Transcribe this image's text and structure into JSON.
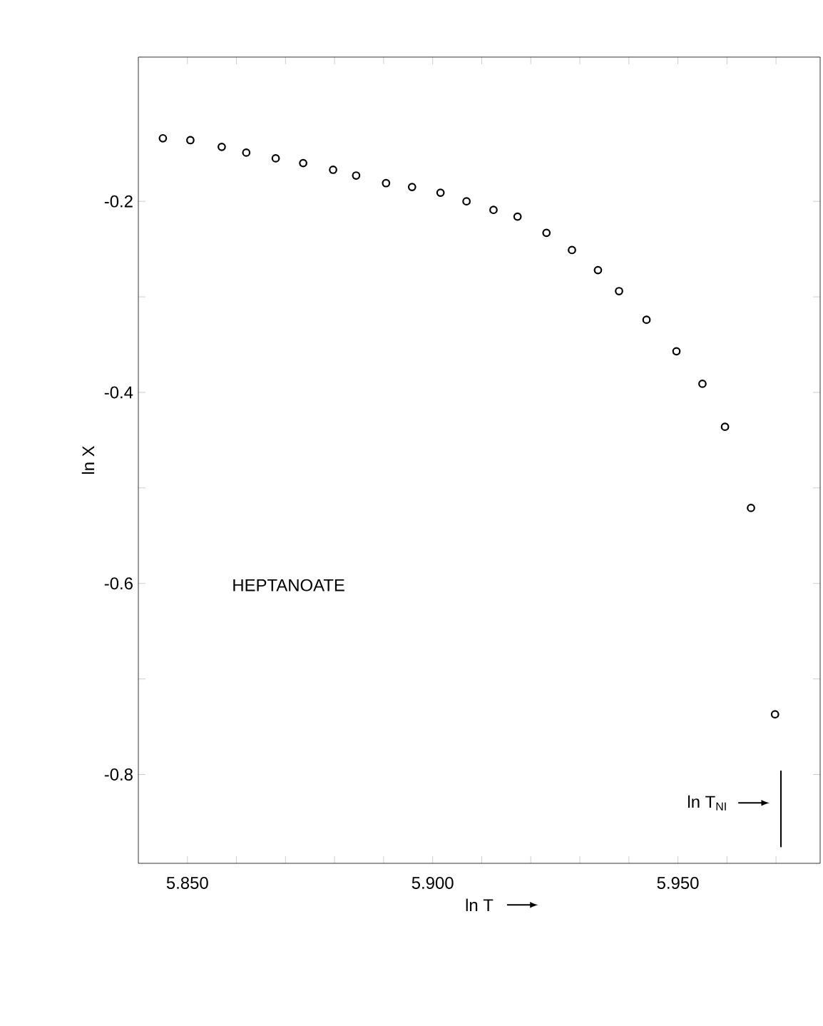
{
  "chart_data": {
    "type": "scatter",
    "xlabel": "ln T",
    "ylabel": "ln X",
    "annotations": [
      "HEPTANOATE"
    ],
    "series": [
      {
        "color": "#000000",
        "x": [
          5.845,
          5.8506,
          5.857,
          5.862,
          5.868,
          5.8736,
          5.8797,
          5.8844,
          5.8905,
          5.8958,
          5.9016,
          5.9069,
          5.9124,
          5.9173,
          5.9232,
          5.9284,
          5.9337,
          5.938,
          5.9436,
          5.9497,
          5.955,
          5.9596,
          5.9649,
          5.9698
        ],
        "values": [
          -0.134,
          -0.136,
          -0.143,
          -0.149,
          -0.155,
          -0.16,
          -0.167,
          -0.173,
          -0.181,
          -0.185,
          -0.191,
          -0.2,
          -0.209,
          -0.216,
          -0.233,
          -0.251,
          -0.272,
          -0.294,
          -0.324,
          -0.357,
          -0.391,
          -0.436,
          -0.521,
          -0.737
        ]
      }
    ],
    "marker": "circle",
    "xlim": [
      5.84,
      5.979
    ],
    "ylim": [
      -0.893,
      -0.049
    ],
    "xticks": [
      {
        "value": 5.85,
        "label": "5.850"
      },
      {
        "value": 5.86,
        "label": null
      },
      {
        "value": 5.87,
        "label": null
      },
      {
        "value": 5.88,
        "label": null
      },
      {
        "value": 5.89,
        "label": null
      },
      {
        "value": 5.9,
        "label": "5.900"
      },
      {
        "value": 5.91,
        "label": null
      },
      {
        "value": 5.92,
        "label": null
      },
      {
        "value": 5.93,
        "label": null
      },
      {
        "value": 5.94,
        "label": null
      },
      {
        "value": 5.95,
        "label": "5.950"
      },
      {
        "value": 5.96,
        "label": null
      },
      {
        "value": 5.97,
        "label": null
      }
    ],
    "yticks": [
      {
        "value": -0.2,
        "label": "-0.2"
      },
      {
        "value": -0.3,
        "label": null
      },
      {
        "value": -0.4,
        "label": "-0.4"
      },
      {
        "value": -0.5,
        "label": null
      },
      {
        "value": -0.6,
        "label": "-0.6"
      },
      {
        "value": -0.7,
        "label": null
      },
      {
        "value": -0.8,
        "label": "-0.8"
      }
    ],
    "ref_lines": [
      {
        "axis": "x",
        "value": 5.971,
        "label": "ln T$_{NI}$"
      }
    ]
  }
}
